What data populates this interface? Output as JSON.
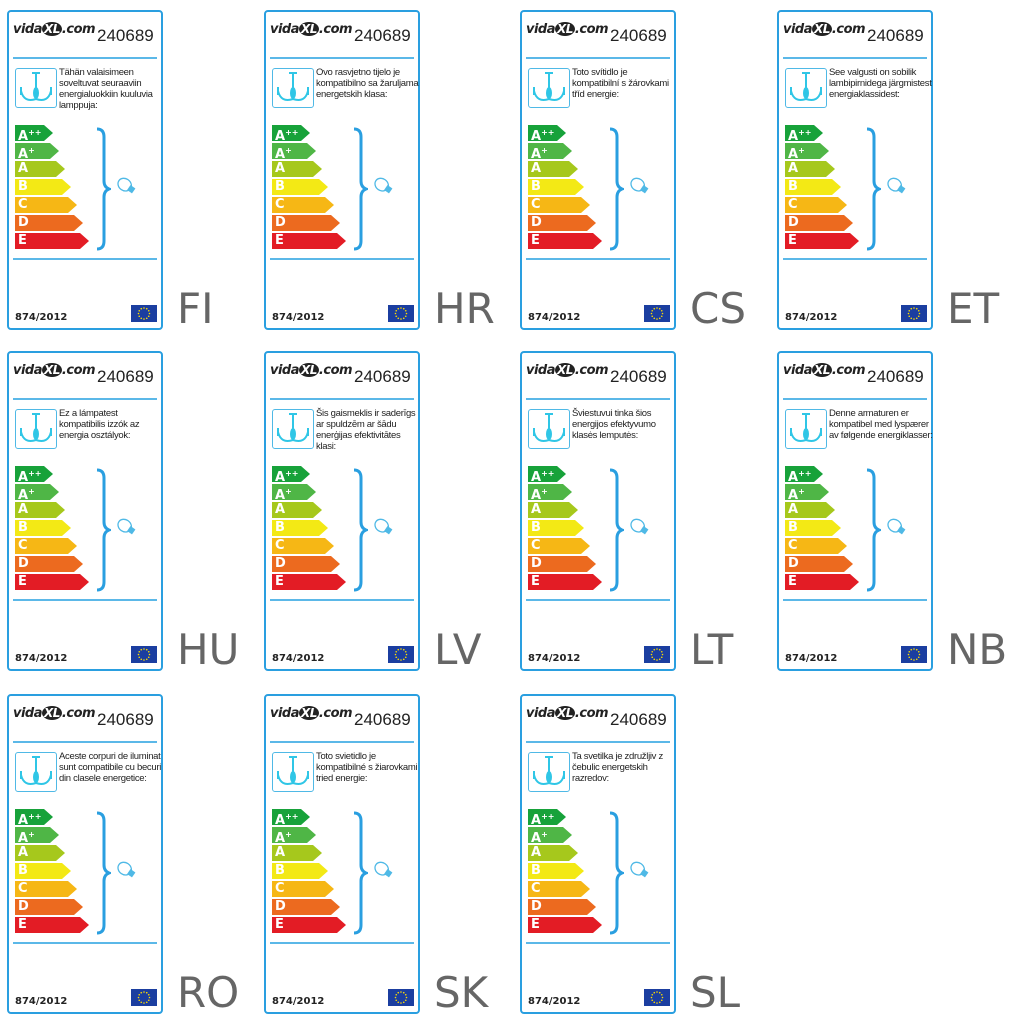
{
  "logo": "vidaXL.com",
  "product_number": "240689",
  "regulation": "874/2012",
  "classes": [
    {
      "letter": "A",
      "sup": "++",
      "color": "#17a23a"
    },
    {
      "letter": "A",
      "sup": "+",
      "color": "#4fb646"
    },
    {
      "letter": "A",
      "sup": "",
      "color": "#a6c81c"
    },
    {
      "letter": "B",
      "sup": "",
      "color": "#f3e915"
    },
    {
      "letter": "C",
      "sup": "",
      "color": "#f6b715"
    },
    {
      "letter": "D",
      "sup": "",
      "color": "#ec6a1f"
    },
    {
      "letter": "E",
      "sup": "",
      "color": "#e31c25"
    }
  ],
  "accent": "#2a9fe0",
  "labels": [
    {
      "code": "FI",
      "text": "Tähän valaisimeen soveltuvat seuraaviin energialuokkiin kuuluvia lamppuja:"
    },
    {
      "code": "HR",
      "text": "Ovo rasvjetno tijelo je kompatibilno sa žaruljama energetskih klasa:"
    },
    {
      "code": "CS",
      "text": "Toto svítidlo je kompatibilní s žárovkami tříd energie:"
    },
    {
      "code": "ET",
      "text": "See valgusti on sobilik lambipirnidega järgmistest energiaklassidest:"
    },
    {
      "code": "HU",
      "text": "Ez a lámpatest kompatibilis izzók az energia osztályok:"
    },
    {
      "code": "LV",
      "text": "Šis gaismeklis ir saderīgs ar spuldzēm ar šādu enerģijas efektivitātes klasi:"
    },
    {
      "code": "LT",
      "text": "Šviestuvui tinka šios energijos efektyvumo klasės lemputės:"
    },
    {
      "code": "NB",
      "text": "Denne armaturen er kompatibel med lyspærer av følgende energiklasser:"
    },
    {
      "code": "RO",
      "text": "Aceste corpuri de iluminat sunt compatibile cu becuri din clasele energetice:"
    },
    {
      "code": "SK",
      "text": "Toto svietidlo je kompatibilné s žiarovkami tried energie:"
    },
    {
      "code": "SL",
      "text": "Ta svetilka je združljiv z čebulic energetskih razredov:"
    }
  ]
}
